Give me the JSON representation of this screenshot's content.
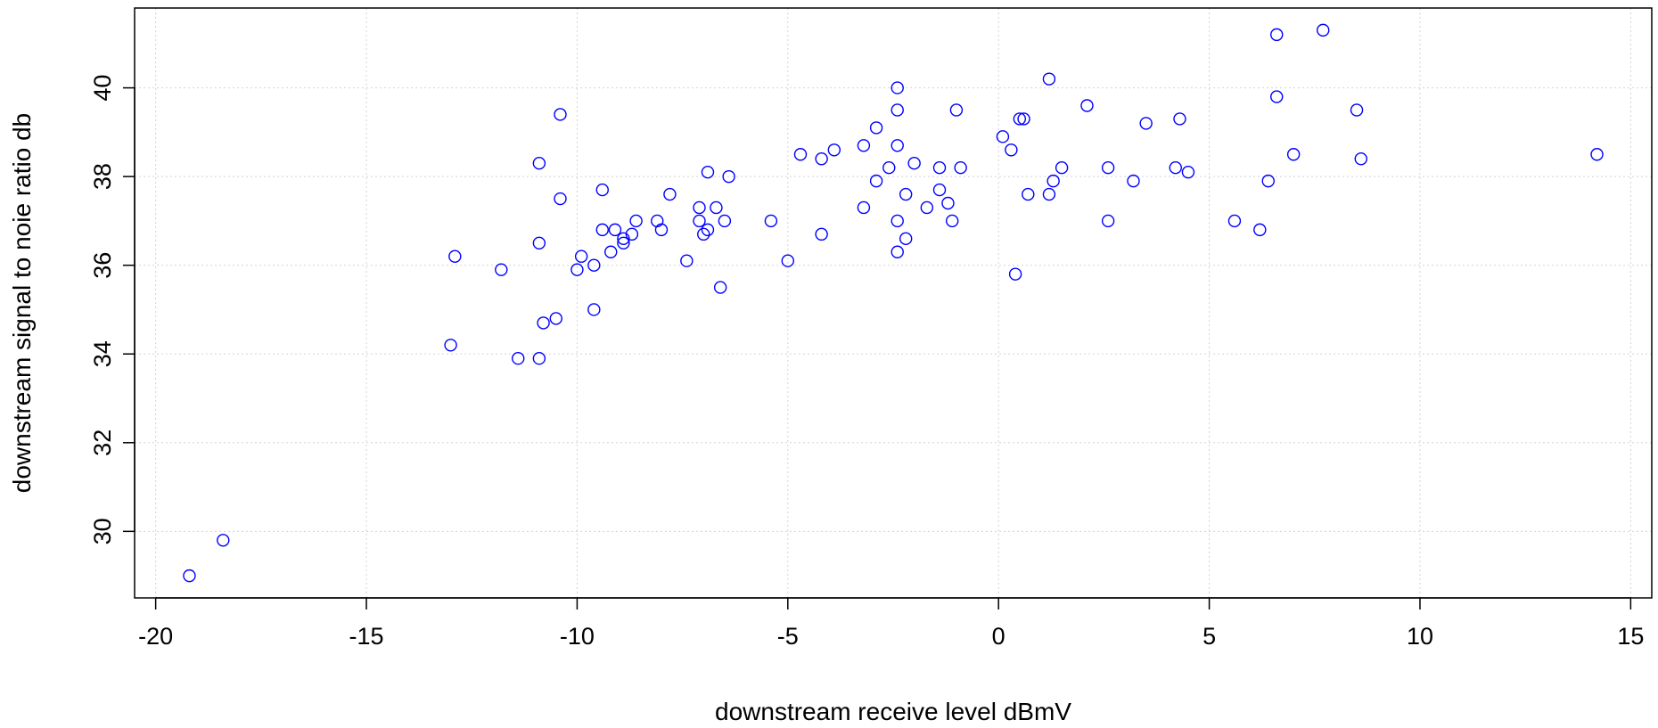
{
  "chart_data": {
    "type": "scatter",
    "title": "",
    "xlabel": "downstream receive level dBmV",
    "ylabel": "downstream signal to noie ratio db",
    "xlim": [
      -20.5,
      15.5
    ],
    "ylim": [
      28.5,
      41.8
    ],
    "xticks": [
      -20,
      -15,
      -10,
      -5,
      0,
      5,
      10,
      15
    ],
    "yticks": [
      30,
      32,
      34,
      36,
      38,
      40
    ],
    "grid": true,
    "point_color": "#0000ff",
    "marker": "open-circle",
    "points": [
      {
        "x": -19.2,
        "y": 29.0
      },
      {
        "x": -18.4,
        "y": 29.8
      },
      {
        "x": -13.0,
        "y": 34.2
      },
      {
        "x": -12.9,
        "y": 36.2
      },
      {
        "x": -11.8,
        "y": 35.9
      },
      {
        "x": -11.4,
        "y": 33.9
      },
      {
        "x": -10.9,
        "y": 33.9
      },
      {
        "x": -10.9,
        "y": 36.5
      },
      {
        "x": -10.9,
        "y": 38.3
      },
      {
        "x": -10.8,
        "y": 34.7
      },
      {
        "x": -10.5,
        "y": 34.8
      },
      {
        "x": -10.4,
        "y": 37.5
      },
      {
        "x": -10.4,
        "y": 39.4
      },
      {
        "x": -10.0,
        "y": 35.9
      },
      {
        "x": -9.9,
        "y": 36.2
      },
      {
        "x": -9.6,
        "y": 35.0
      },
      {
        "x": -9.6,
        "y": 36.0
      },
      {
        "x": -9.4,
        "y": 36.8
      },
      {
        "x": -9.4,
        "y": 37.7
      },
      {
        "x": -9.2,
        "y": 36.3
      },
      {
        "x": -9.1,
        "y": 36.8
      },
      {
        "x": -8.9,
        "y": 36.6
      },
      {
        "x": -8.9,
        "y": 36.5
      },
      {
        "x": -8.7,
        "y": 36.7
      },
      {
        "x": -8.6,
        "y": 37.0
      },
      {
        "x": -8.1,
        "y": 37.0
      },
      {
        "x": -8.0,
        "y": 36.8
      },
      {
        "x": -7.8,
        "y": 37.6
      },
      {
        "x": -7.4,
        "y": 36.1
      },
      {
        "x": -7.1,
        "y": 37.3
      },
      {
        "x": -7.1,
        "y": 37.0
      },
      {
        "x": -7.0,
        "y": 36.7
      },
      {
        "x": -6.9,
        "y": 38.1
      },
      {
        "x": -6.9,
        "y": 36.8
      },
      {
        "x": -6.7,
        "y": 37.3
      },
      {
        "x": -6.6,
        "y": 35.5
      },
      {
        "x": -6.5,
        "y": 37.0
      },
      {
        "x": -6.4,
        "y": 38.0
      },
      {
        "x": -5.4,
        "y": 37.0
      },
      {
        "x": -5.0,
        "y": 36.1
      },
      {
        "x": -4.7,
        "y": 38.5
      },
      {
        "x": -4.2,
        "y": 36.7
      },
      {
        "x": -4.2,
        "y": 38.4
      },
      {
        "x": -3.9,
        "y": 38.6
      },
      {
        "x": -3.2,
        "y": 38.7
      },
      {
        "x": -3.2,
        "y": 37.3
      },
      {
        "x": -2.9,
        "y": 37.9
      },
      {
        "x": -2.9,
        "y": 39.1
      },
      {
        "x": -2.6,
        "y": 38.2
      },
      {
        "x": -2.4,
        "y": 40.0
      },
      {
        "x": -2.4,
        "y": 39.5
      },
      {
        "x": -2.4,
        "y": 38.7
      },
      {
        "x": -2.4,
        "y": 37.0
      },
      {
        "x": -2.4,
        "y": 36.3
      },
      {
        "x": -2.2,
        "y": 37.6
      },
      {
        "x": -2.2,
        "y": 36.6
      },
      {
        "x": -2.0,
        "y": 38.3
      },
      {
        "x": -1.7,
        "y": 37.3
      },
      {
        "x": -1.4,
        "y": 38.2
      },
      {
        "x": -1.4,
        "y": 37.7
      },
      {
        "x": -1.2,
        "y": 37.4
      },
      {
        "x": -1.1,
        "y": 37.0
      },
      {
        "x": -1.0,
        "y": 39.5
      },
      {
        "x": -0.9,
        "y": 38.2
      },
      {
        "x": 0.1,
        "y": 38.9
      },
      {
        "x": 0.3,
        "y": 38.6
      },
      {
        "x": 0.4,
        "y": 35.8
      },
      {
        "x": 0.5,
        "y": 39.3
      },
      {
        "x": 0.6,
        "y": 39.3
      },
      {
        "x": 0.7,
        "y": 37.6
      },
      {
        "x": 1.2,
        "y": 40.2
      },
      {
        "x": 1.2,
        "y": 37.6
      },
      {
        "x": 1.3,
        "y": 37.9
      },
      {
        "x": 1.5,
        "y": 38.2
      },
      {
        "x": 2.1,
        "y": 39.6
      },
      {
        "x": 2.6,
        "y": 38.2
      },
      {
        "x": 2.6,
        "y": 37.0
      },
      {
        "x": 3.2,
        "y": 37.9
      },
      {
        "x": 3.5,
        "y": 39.2
      },
      {
        "x": 4.2,
        "y": 38.2
      },
      {
        "x": 4.3,
        "y": 39.3
      },
      {
        "x": 4.5,
        "y": 38.1
      },
      {
        "x": 5.6,
        "y": 37.0
      },
      {
        "x": 6.2,
        "y": 36.8
      },
      {
        "x": 6.4,
        "y": 37.9
      },
      {
        "x": 6.6,
        "y": 41.2
      },
      {
        "x": 6.6,
        "y": 39.8
      },
      {
        "x": 7.0,
        "y": 38.5
      },
      {
        "x": 7.7,
        "y": 41.3
      },
      {
        "x": 8.5,
        "y": 39.5
      },
      {
        "x": 8.6,
        "y": 38.4
      },
      {
        "x": 14.2,
        "y": 38.5
      }
    ]
  }
}
